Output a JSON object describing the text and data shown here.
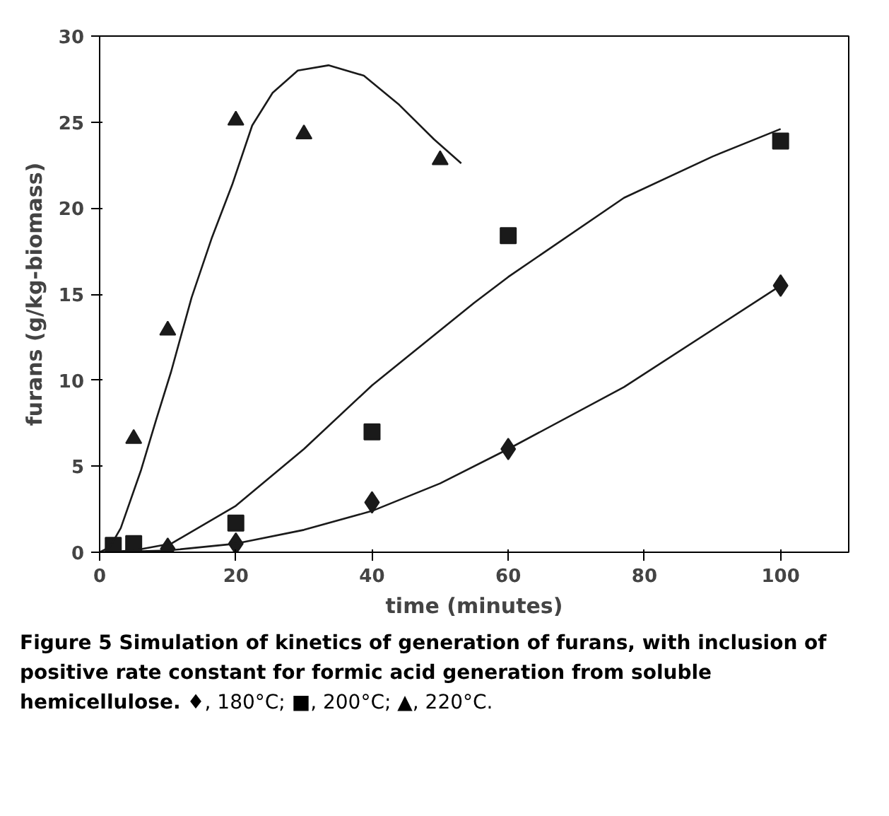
{
  "chart_data": {
    "type": "scatter",
    "xlabel": "time (minutes)",
    "ylabel": "furans (g/kg-biomass)",
    "xlim": [
      0,
      110
    ],
    "ylim": [
      0,
      30
    ],
    "xticks": [
      0,
      20,
      40,
      60,
      80,
      100
    ],
    "yticks": [
      0,
      5,
      10,
      15,
      20,
      25,
      30
    ],
    "grid": false,
    "annotations": [
      "Figure 5 Simulation of kinetics of generation of furans, with inclusion of positive rate constant for formic acid generation from soluble hemicellulose.",
      "♦, 180°C; ■, 200°C; ▲, 220°C."
    ],
    "series": [
      {
        "color": "#1a1a1a",
        "marker": "diamond",
        "x": [
          10,
          20,
          40,
          60,
          100
        ],
        "values": [
          0.2,
          0.5,
          2.9,
          6.0,
          15.5
        ]
      },
      {
        "color": "#1a1a1a",
        "marker": "square",
        "x": [
          2,
          5,
          20,
          40,
          60,
          100
        ],
        "values": [
          0.4,
          0.5,
          1.7,
          7.0,
          18.4,
          23.9
        ]
      },
      {
        "color": "#1a1a1a",
        "marker": "triangle",
        "x": [
          5,
          10,
          20,
          30,
          50
        ],
        "values": [
          6.6,
          12.9,
          25.1,
          24.3,
          22.8
        ]
      },
      {
        "type": "line",
        "color": "#1a1a1a",
        "x": [
          0,
          10,
          20,
          30,
          40,
          50,
          60,
          77,
          100
        ],
        "values": [
          0,
          0.1,
          0.5,
          1.3,
          2.4,
          4.0,
          6.0,
          9.6,
          15.5
        ]
      },
      {
        "type": "line",
        "color": "#1a1a1a",
        "x": [
          0,
          5,
          10.5,
          20,
          30,
          40,
          55,
          60,
          77,
          90,
          100
        ],
        "values": [
          0,
          0.1,
          0.5,
          2.7,
          6.0,
          9.7,
          14.5,
          16.0,
          20.6,
          23.0,
          24.6
        ]
      },
      {
        "type": "line",
        "color": "#1a1a1a",
        "x": [
          0,
          1.5,
          3.1,
          6.1,
          8.3,
          10.5,
          13.5,
          16.5,
          19.5,
          22.4,
          25.4,
          29.1,
          33.6,
          38.8,
          44,
          49.1,
          53.1
        ],
        "values": [
          0,
          0.3,
          1.4,
          4.8,
          7.7,
          10.5,
          14.8,
          18.3,
          21.4,
          24.8,
          26.7,
          28.0,
          28.3,
          27.7,
          26.0,
          24.0,
          22.6
        ]
      }
    ]
  }
}
